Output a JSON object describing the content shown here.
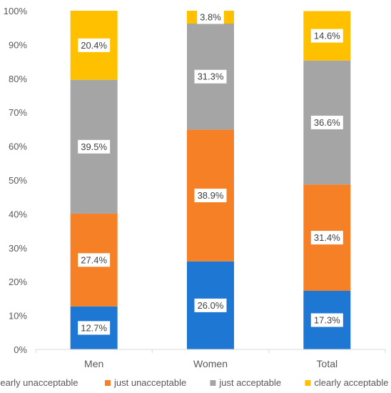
{
  "chart_data": {
    "type": "bar",
    "stacked": true,
    "categories": [
      "Men",
      "Women",
      "Total"
    ],
    "series": [
      {
        "name": "clearly unacceptable",
        "color": "#1F77D4",
        "values": [
          12.7,
          26.0,
          17.3
        ],
        "labels": [
          "12.7%",
          "26.0%",
          "17.3%"
        ]
      },
      {
        "name": "just unacceptable",
        "color": "#F58025",
        "values": [
          27.4,
          38.9,
          31.4
        ],
        "labels": [
          "27.4%",
          "38.9%",
          "31.4%"
        ]
      },
      {
        "name": "just acceptable",
        "color": "#A5A5A5",
        "values": [
          39.5,
          31.3,
          36.6
        ],
        "labels": [
          "39.5%",
          "31.3%",
          "36.6%"
        ]
      },
      {
        "name": "clearly acceptable",
        "color": "#FFC000",
        "values": [
          20.4,
          3.8,
          14.6
        ],
        "labels": [
          "20.4%",
          "3.8%",
          "14.6%"
        ]
      }
    ],
    "yticks": [
      "0%",
      "10%",
      "20%",
      "30%",
      "40%",
      "50%",
      "60%",
      "70%",
      "80%",
      "90%",
      "100%"
    ],
    "ylim": [
      0,
      100
    ],
    "grid": false,
    "legend": "bottom"
  }
}
